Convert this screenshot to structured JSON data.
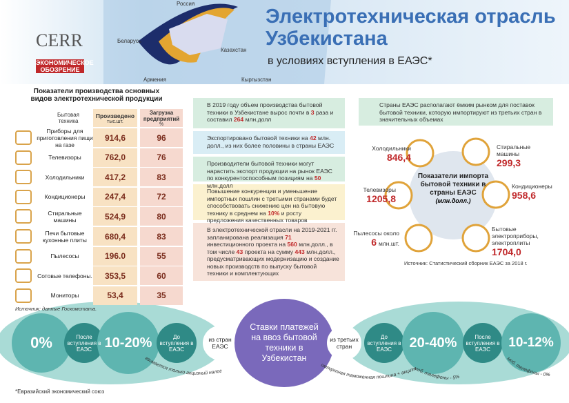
{
  "header": {
    "map_labels": [
      "Россия",
      "Беларусь",
      "Казахстан",
      "Армения",
      "Кыргызстан"
    ],
    "logo_cerr": "CERR",
    "logo_review": [
      "ЭКОНОМИЧЕСКОЕ",
      "ОБОЗРЕНИЕ"
    ],
    "title_lines": [
      "Электротехническая отрасль",
      "Узбекистана"
    ],
    "subtitle": "в условиях вступления в ЕАЭС*"
  },
  "table": {
    "title": "Показатели производства основных видов электротехнической продукции",
    "headers": {
      "item": "Бытовая техника",
      "produced": "Произведено",
      "produced_unit": "тыс.шт.",
      "load": "Загрузка предприятий",
      "load_unit": "%"
    },
    "rows": [
      {
        "item": "Приборы для приготовления пищи на газе",
        "produced": "914,6",
        "load": "96"
      },
      {
        "item": "Телевизоры",
        "produced": "762,0",
        "load": "76"
      },
      {
        "item": "Холодильники",
        "produced": "417,2",
        "load": "83"
      },
      {
        "item": "Кондиционеры",
        "produced": "247,4",
        "load": "72"
      },
      {
        "item": "Стиральные машины",
        "produced": "524,9",
        "load": "80"
      },
      {
        "item": "Печи бытовые кухонные плиты",
        "produced": "680,4",
        "load": "83"
      },
      {
        "item": "Пылесосы",
        "produced": "196.0",
        "load": "55"
      },
      {
        "item": "Сотовые телефоны.",
        "produced": "353,5",
        "load": "60"
      },
      {
        "item": "Мониторы",
        "produced": "53,4",
        "load": "35"
      }
    ],
    "source": "Источник: данные Госкомстата."
  },
  "middle": {
    "boxes": [
      {
        "parts": [
          "В 2019 году объем производства бытовой техники в Узбекистане вырос почти в ",
          "3",
          " раза и составил ",
          "264",
          " млн.долл"
        ]
      },
      {
        "parts": [
          "Экспортировано бытовой техники на ",
          "42",
          " млн. долл., из них более половины в страны ЕАЭС"
        ]
      },
      {
        "parts": [
          "Производители бытовой техники могут нарастить экспорт продукции на рынок ЕАЭС по конкурентоспособным позициям на ",
          "50",
          " млн.долл"
        ]
      },
      {
        "parts": [
          "Повышение конкуренции и уменьшение импортных пошлин с третьими странами будет способствовать снижению цен на бытовую технику в среднем на ",
          "10%",
          " и росту предложения качественных товаров"
        ]
      },
      {
        "parts": [
          "В электротехнической отрасли на 2019-2021 гг. запланирована реализация ",
          "71",
          " инвестиционного проекта на ",
          "560",
          " млн.долл., в том числе ",
          "43",
          " проекта на сумму ",
          "443",
          " млн.долл., предусматривающих модернизацию и создание новых производств по выпуску бытовой техники и комплектующих"
        ]
      }
    ]
  },
  "imports": {
    "intro": "Страны ЕАЭС располагают ёмким рынком для поставок бытовой техники, которую импортируют из третьих стран в значительных объемах",
    "center_title": "Показатели импорта бытовой техники в страны ЕАЭС",
    "center_unit": "(млн.долл.)",
    "items": [
      {
        "label": "Холодильники",
        "value": "846,4"
      },
      {
        "label": "Стиральные машины",
        "value": "299,3"
      },
      {
        "label": "Кондиционеры",
        "value": "958,6"
      },
      {
        "label": "Бытовые электроприборы, электроплиты",
        "value": "1704,0"
      },
      {
        "label": "Пылесосы около",
        "value": "6",
        "unit": "млн.шт."
      },
      {
        "label": "Телевизоры",
        "value": "1205,8"
      }
    ],
    "source": "Источник: Статистический сборник ЕАЭС за 2018 г."
  },
  "rates": {
    "center": "Ставки платежей на ввоз бытовой техники в Узбекистан",
    "eaeu_after": "0%",
    "eaeu_after_label": "После вступления в ЕАЭС",
    "eaeu_before": "10-20%",
    "eaeu_before_label": "До вступления в ЕАЭС",
    "from_eaeu": "из стран ЕАЭС",
    "from_third": "из третьих стран",
    "third_before_label": "До вступления в ЕАЭС",
    "third_before": "20-40%",
    "third_after_label": "После вступления в ЕАЭС",
    "third_after": "10-12%",
    "note_excise": "взимается только акцизный налог",
    "note_duty": "импортная таможенная пошлина + акцизный налог",
    "note_phones_5": "моб. телефоны - 5%",
    "note_phones_0": "моб. телефоны - 0%"
  },
  "footnote": "*Евразийский экономический союз"
}
